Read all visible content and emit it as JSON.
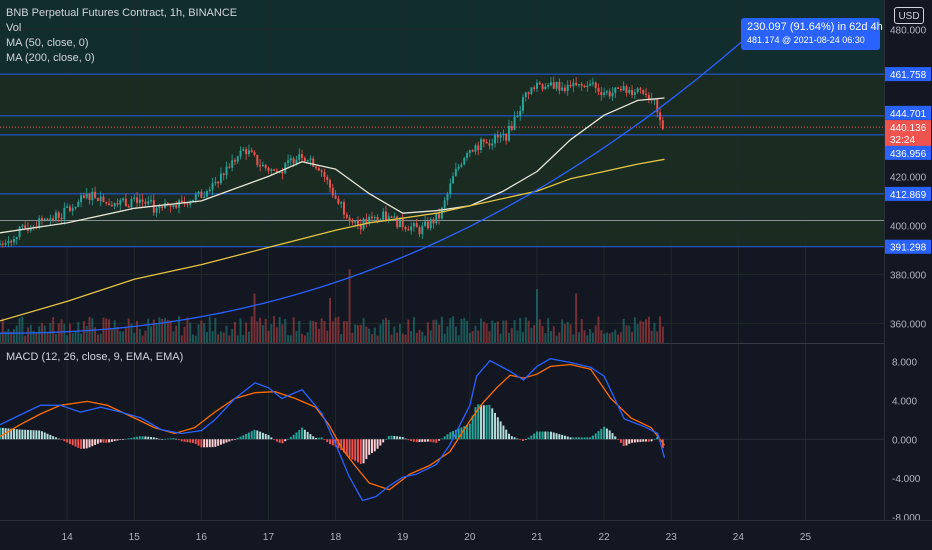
{
  "legend": {
    "title": "BNB Perpetual Futures Contract, 1h, BINANCE",
    "vol": "Vol",
    "ma50": "MA (50, close, 0)",
    "ma200": "MA (200, close, 0)",
    "macd": "MACD (12, 26, close, 9, EMA, EMA)"
  },
  "currency_button": "USD",
  "projection_tooltip": {
    "line1": "230.097 (91.64%) in 62d 4h",
    "line2": "481.174 @ 2021-08-24  06:30"
  },
  "price_axis": {
    "ticks": [
      "480.000",
      "420.000",
      "400.000",
      "380.000",
      "360.000"
    ],
    "labels": [
      {
        "text": "461.758",
        "price": 461.758,
        "kind": "level"
      },
      {
        "text": "444.701",
        "price": 444.701,
        "kind": "level"
      },
      {
        "text": "440.136",
        "price": 440.136,
        "kind": "current"
      },
      {
        "text": "32:24",
        "kind": "countdown"
      },
      {
        "text": "436.956",
        "price": 436.956,
        "kind": "level"
      },
      {
        "text": "412.869",
        "price": 412.869,
        "kind": "level"
      },
      {
        "text": "391.298",
        "price": 391.298,
        "kind": "level"
      }
    ]
  },
  "macd_axis": {
    "ticks": [
      "8.000",
      "4.000",
      "0.000",
      "-4.000",
      "-8.000"
    ]
  },
  "time_axis": {
    "ticks": [
      "14",
      "15",
      "16",
      "17",
      "18",
      "19",
      "20",
      "21",
      "22",
      "23",
      "24",
      "25"
    ]
  },
  "colors": {
    "background": "#131722",
    "up": "#26a69a",
    "down": "#ef5350",
    "ma50": "#e8e6d8",
    "ma200": "#e4c545",
    "macd_line": "#2962ff",
    "signal_line": "#ff6d00",
    "level_line": "#2962ff",
    "current_price": "#ef5350"
  },
  "chart_data": [
    {
      "type": "candlestick",
      "title": "BNB Perpetual Futures Contract, 1h, BINANCE",
      "x_labels": [
        "14",
        "15",
        "16",
        "17",
        "18",
        "19",
        "20",
        "21",
        "22",
        "23",
        "24",
        "25"
      ],
      "ylim": [
        352,
        492
      ],
      "horizontal_levels": [
        461.758,
        444.701,
        436.956,
        412.869,
        391.298,
        402
      ],
      "current_price": 440.136,
      "day_path": [
        [
          13.0,
          392
        ],
        [
          13.5,
          400
        ],
        [
          14.0,
          405
        ],
        [
          14.4,
          413
        ],
        [
          14.8,
          409
        ],
        [
          15.1,
          411
        ],
        [
          15.4,
          406
        ],
        [
          15.7,
          409
        ],
        [
          16.1,
          413
        ],
        [
          16.4,
          423
        ],
        [
          16.7,
          431
        ],
        [
          16.9,
          425
        ],
        [
          17.2,
          421
        ],
        [
          17.5,
          430
        ],
        [
          17.8,
          424
        ],
        [
          18.1,
          408
        ],
        [
          18.4,
          400
        ],
        [
          18.7,
          404
        ],
        [
          19.0,
          401
        ],
        [
          19.3,
          398
        ],
        [
          19.6,
          404
        ],
        [
          19.8,
          420
        ],
        [
          20.0,
          431
        ],
        [
          20.3,
          434
        ],
        [
          20.6,
          437
        ],
        [
          20.9,
          455
        ],
        [
          21.2,
          458
        ],
        [
          21.5,
          456
        ],
        [
          21.8,
          457
        ],
        [
          22.1,
          454
        ],
        [
          22.4,
          455
        ],
        [
          22.6,
          456
        ],
        [
          22.75,
          452
        ],
        [
          22.9,
          440.136
        ]
      ],
      "series": [
        {
          "name": "MA (50, close, 0)",
          "points": [
            [
              13,
              397
            ],
            [
              14,
              401
            ],
            [
              15,
              407
            ],
            [
              16,
              410
            ],
            [
              17,
              420
            ],
            [
              17.5,
              426
            ],
            [
              18,
              423
            ],
            [
              18.5,
              413
            ],
            [
              19,
              405
            ],
            [
              19.5,
              406
            ],
            [
              20,
              408
            ],
            [
              20.5,
              414
            ],
            [
              21,
              422
            ],
            [
              21.5,
              435
            ],
            [
              22,
              445
            ],
            [
              22.5,
              451
            ],
            [
              22.9,
              452
            ]
          ]
        },
        {
          "name": "MA (200, close, 0)",
          "points": [
            [
              13,
              361
            ],
            [
              14,
              369
            ],
            [
              15,
              378
            ],
            [
              16,
              384
            ],
            [
              17,
              391
            ],
            [
              18,
              398
            ],
            [
              18.5,
              401
            ],
            [
              19,
              403
            ],
            [
              19.5,
              405
            ],
            [
              20,
              408
            ],
            [
              21,
              414
            ],
            [
              21.5,
              419
            ],
            [
              22,
              422
            ],
            [
              22.5,
              425
            ],
            [
              22.9,
              427
            ]
          ]
        }
      ],
      "volume_spikes": [
        [
          16.8,
          0.55
        ],
        [
          17.9,
          0.5
        ],
        [
          18.2,
          0.82
        ],
        [
          21.0,
          0.6
        ],
        [
          21.6,
          0.55
        ]
      ]
    },
    {
      "type": "line",
      "title": "MACD (12, 26, close, 9, EMA, EMA)",
      "ylim": [
        -8,
        9.5
      ],
      "series": [
        {
          "name": "MACD",
          "points": [
            [
              13,
              1.5
            ],
            [
              13.3,
              2.5
            ],
            [
              13.6,
              3.5
            ],
            [
              13.9,
              3.5
            ],
            [
              14.2,
              2.8
            ],
            [
              14.5,
              3.3
            ],
            [
              14.8,
              2.8
            ],
            [
              15.1,
              2.2
            ],
            [
              15.4,
              1.0
            ],
            [
              15.7,
              0.6
            ],
            [
              16.0,
              0.9
            ],
            [
              16.2,
              2.0
            ],
            [
              16.5,
              4.2
            ],
            [
              16.8,
              5.8
            ],
            [
              17.0,
              5.3
            ],
            [
              17.2,
              4.2
            ],
            [
              17.5,
              5.1
            ],
            [
              17.8,
              2.6
            ],
            [
              18.0,
              -0.5
            ],
            [
              18.2,
              -3.8
            ],
            [
              18.4,
              -6.3
            ],
            [
              18.6,
              -5.9
            ],
            [
              18.8,
              -4.8
            ],
            [
              19.0,
              -3.9
            ],
            [
              19.2,
              -3.6
            ],
            [
              19.5,
              -2.6
            ],
            [
              19.7,
              -0.6
            ],
            [
              20.0,
              3.5
            ],
            [
              20.1,
              6.5
            ],
            [
              20.3,
              8.1
            ],
            [
              20.6,
              7.0
            ],
            [
              20.8,
              6.1
            ],
            [
              21.0,
              7.5
            ],
            [
              21.2,
              8.3
            ],
            [
              21.5,
              7.9
            ],
            [
              21.8,
              7.4
            ],
            [
              22.0,
              6.5
            ],
            [
              22.3,
              2.1
            ],
            [
              22.6,
              1.3
            ],
            [
              22.8,
              0.6
            ],
            [
              22.9,
              -1.9
            ]
          ]
        },
        {
          "name": "Signal",
          "points": [
            [
              13,
              0.3
            ],
            [
              13.3,
              1.5
            ],
            [
              13.6,
              2.6
            ],
            [
              13.9,
              3.5
            ],
            [
              14.3,
              3.9
            ],
            [
              14.6,
              3.5
            ],
            [
              15.0,
              2.2
            ],
            [
              15.3,
              1.2
            ],
            [
              15.6,
              0.6
            ],
            [
              15.9,
              1.2
            ],
            [
              16.2,
              2.8
            ],
            [
              16.5,
              4.2
            ],
            [
              16.8,
              4.8
            ],
            [
              17.1,
              4.9
            ],
            [
              17.4,
              4.2
            ],
            [
              17.7,
              3.3
            ],
            [
              17.9,
              1.5
            ],
            [
              18.1,
              -1.0
            ],
            [
              18.3,
              -2.8
            ],
            [
              18.5,
              -4.5
            ],
            [
              18.8,
              -5.2
            ],
            [
              19.1,
              -3.6
            ],
            [
              19.4,
              -2.7
            ],
            [
              19.7,
              -1.3
            ],
            [
              20.0,
              1.9
            ],
            [
              20.2,
              3.8
            ],
            [
              20.4,
              5.3
            ],
            [
              20.6,
              6.6
            ],
            [
              20.8,
              6.3
            ],
            [
              21.0,
              6.7
            ],
            [
              21.2,
              7.5
            ],
            [
              21.5,
              7.7
            ],
            [
              21.8,
              7.2
            ],
            [
              22.1,
              4.2
            ],
            [
              22.4,
              2.2
            ],
            [
              22.7,
              1.2
            ],
            [
              22.9,
              -0.6
            ]
          ]
        }
      ]
    }
  ]
}
